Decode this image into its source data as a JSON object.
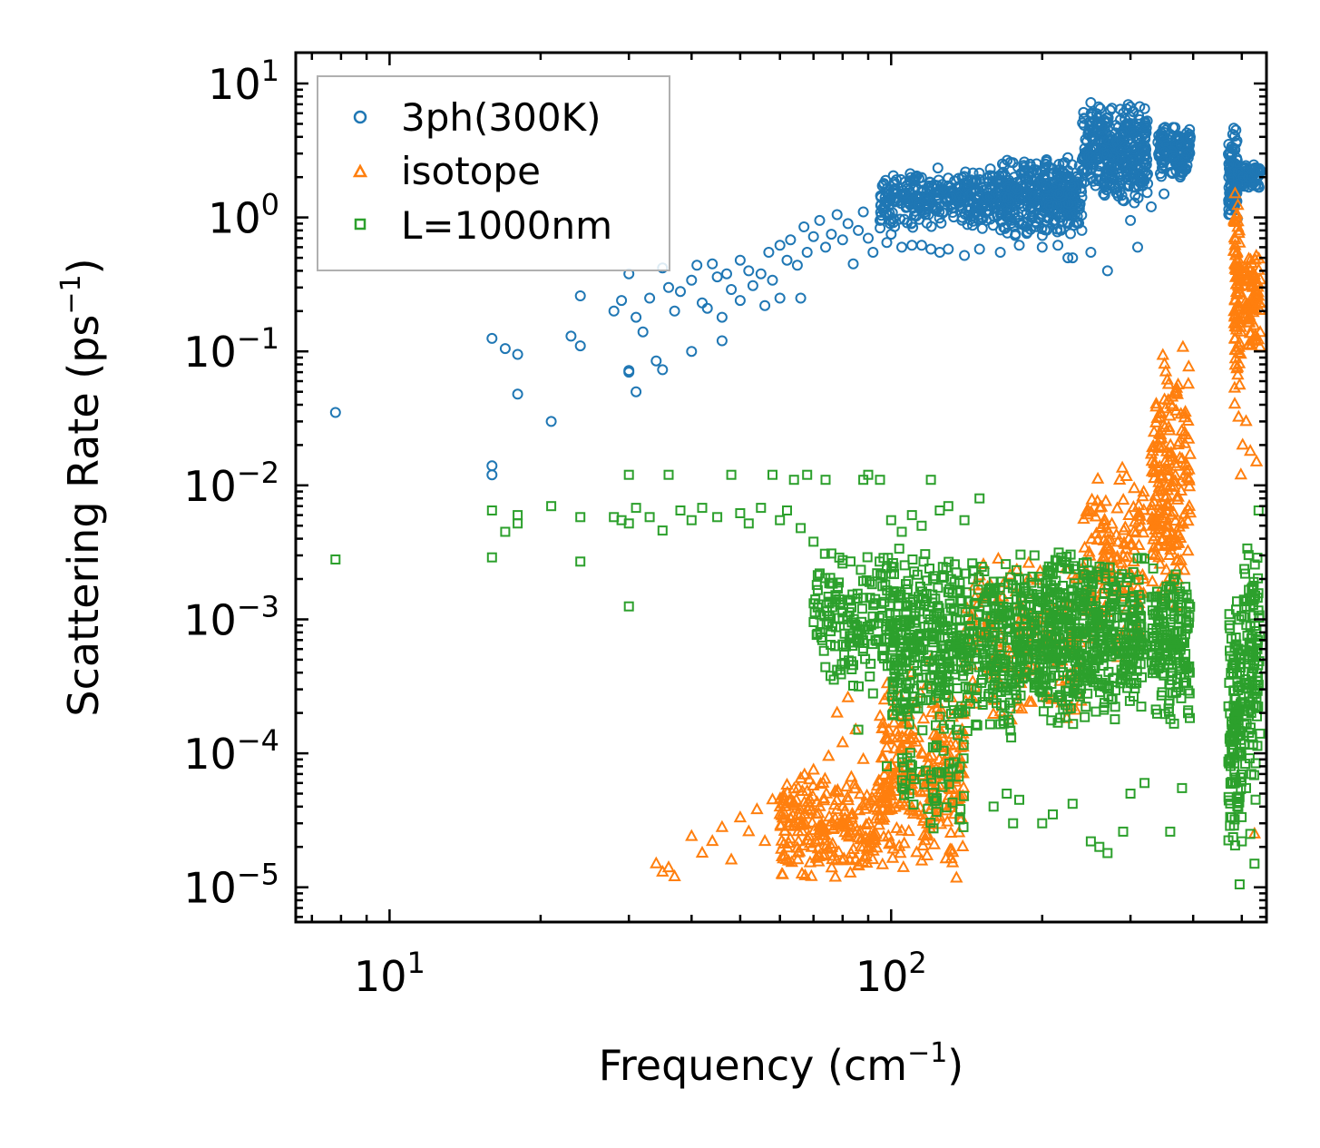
{
  "chart_data": {
    "type": "scatter",
    "xscale": "log",
    "yscale": "log",
    "xlabel": "Frequency (cm",
    "xlabel_sup": "−1",
    "xlabel_end": ")",
    "ylabel": "Scattering Rate (ps",
    "ylabel_sup": "−1",
    "ylabel_end": ")",
    "xlim": [
      6.5,
      560
    ],
    "ylim": [
      5.5e-06,
      17
    ],
    "xticks": [
      {
        "value": 10,
        "base": "10",
        "exp": "1"
      },
      {
        "value": 100,
        "base": "10",
        "exp": "2"
      }
    ],
    "yticks": [
      {
        "value": 10,
        "base": "10",
        "exp": "1"
      },
      {
        "value": 1,
        "base": "10",
        "exp": "0"
      },
      {
        "value": 0.1,
        "base": "10",
        "exp": "−1"
      },
      {
        "value": 0.01,
        "base": "10",
        "exp": "−2"
      },
      {
        "value": 0.001,
        "base": "10",
        "exp": "−3"
      },
      {
        "value": 0.0001,
        "base": "10",
        "exp": "−4"
      },
      {
        "value": 1e-05,
        "base": "10",
        "exp": "−5"
      }
    ],
    "legend_position": "top-left",
    "series": [
      {
        "name": "3ph(300K)",
        "marker": "circle",
        "color": "#1f77b4",
        "points": [
          [
            7.8,
            0.035
          ],
          [
            16,
            0.125
          ],
          [
            16,
            0.014
          ],
          [
            16,
            0.012
          ],
          [
            17,
            0.105
          ],
          [
            18,
            0.048
          ],
          [
            18,
            0.095
          ],
          [
            21,
            0.03
          ],
          [
            23,
            0.13
          ],
          [
            24,
            0.11
          ],
          [
            24,
            0.26
          ],
          [
            28,
            0.2
          ],
          [
            29,
            0.24
          ],
          [
            30,
            0.072
          ],
          [
            30,
            0.38
          ],
          [
            30,
            0.07
          ],
          [
            31,
            0.05
          ],
          [
            31,
            0.18
          ],
          [
            32,
            0.14
          ],
          [
            33,
            0.25
          ],
          [
            34,
            0.085
          ],
          [
            35,
            0.42
          ],
          [
            35,
            0.073
          ],
          [
            36,
            0.3
          ],
          [
            37,
            0.2
          ],
          [
            38,
            0.28
          ],
          [
            40,
            0.34
          ],
          [
            40,
            0.1
          ],
          [
            41,
            0.44
          ],
          [
            42,
            0.23
          ],
          [
            43,
            0.21
          ],
          [
            44,
            0.45
          ],
          [
            45,
            0.36
          ],
          [
            46,
            0.18
          ],
          [
            46,
            0.12
          ],
          [
            47,
            0.38
          ],
          [
            48,
            0.29
          ],
          [
            50,
            0.24
          ],
          [
            50,
            0.48
          ],
          [
            52,
            0.4
          ],
          [
            53,
            0.31
          ],
          [
            55,
            0.38
          ],
          [
            56,
            0.22
          ],
          [
            57,
            0.55
          ],
          [
            58,
            0.34
          ],
          [
            60,
            0.62
          ],
          [
            60,
            0.25
          ],
          [
            62,
            0.48
          ],
          [
            63,
            0.68
          ],
          [
            65,
            0.44
          ],
          [
            66,
            0.25
          ],
          [
            67,
            0.85
          ],
          [
            68,
            0.55
          ],
          [
            70,
            0.72
          ],
          [
            72,
            0.95
          ],
          [
            74,
            0.6
          ],
          [
            76,
            0.75
          ],
          [
            78,
            1.05
          ],
          [
            80,
            0.68
          ],
          [
            82,
            0.9
          ],
          [
            84,
            0.45
          ],
          [
            86,
            0.8
          ],
          [
            88,
            1.1
          ],
          [
            90,
            0.7
          ],
          [
            92,
            0.55
          ],
          [
            95,
            0.95
          ],
          [
            98,
            0.65
          ],
          [
            100,
            0.75
          ],
          [
            105,
            0.6
          ],
          [
            110,
            0.62
          ],
          [
            115,
            0.62
          ],
          [
            120,
            0.58
          ],
          [
            125,
            0.55
          ],
          [
            130,
            0.58
          ],
          [
            140,
            0.52
          ],
          [
            150,
            0.58
          ],
          [
            165,
            0.55
          ],
          [
            180,
            0.62
          ],
          [
            200,
            0.6
          ],
          [
            215,
            0.62
          ],
          [
            225,
            0.5
          ],
          [
            230,
            0.5
          ],
          [
            250,
            0.55
          ],
          [
            270,
            0.4
          ],
          [
            240,
            0.8
          ],
          [
            300,
            0.95
          ],
          [
            310,
            0.6
          ],
          [
            330,
            1.2
          ],
          [
            350,
            1.5
          ]
        ],
        "bands": [
          {
            "x": [
              95,
              165
            ],
            "y": [
              0.8,
              2.4
            ],
            "n": 340
          },
          {
            "x": [
              165,
              240
            ],
            "y": [
              0.7,
              3.0
            ],
            "n": 380
          },
          {
            "x": [
              240,
              325
            ],
            "y": [
              1.2,
              7.5
            ],
            "n": 360
          },
          {
            "x": [
              340,
              395
            ],
            "y": [
              1.9,
              5.0
            ],
            "n": 140
          },
          {
            "x": [
              470,
              490
            ],
            "y": [
              0.9,
              5.0
            ],
            "n": 100
          },
          {
            "x": [
              490,
              545
            ],
            "y": [
              1.6,
              2.6
            ],
            "n": 70
          }
        ]
      },
      {
        "name": "isotope",
        "marker": "triangle",
        "color": "#ff7f0e",
        "points": [
          [
            34,
            1.5e-05
          ],
          [
            35,
            1.3e-05
          ],
          [
            36,
            1.4e-05
          ],
          [
            37,
            1.2e-05
          ],
          [
            40,
            2.4e-05
          ],
          [
            42,
            1.8e-05
          ],
          [
            44,
            2.2e-05
          ],
          [
            46,
            2.8e-05
          ],
          [
            48,
            1.6e-05
          ],
          [
            50,
            3.3e-05
          ],
          [
            52,
            2.6e-05
          ],
          [
            54,
            3.8e-05
          ],
          [
            56,
            2.2e-05
          ],
          [
            58,
            4.5e-05
          ],
          [
            60,
            3.5e-05
          ],
          [
            62,
            5.8e-05
          ],
          [
            64,
            4.2e-05
          ],
          [
            66,
            6.5e-05
          ],
          [
            68,
            5.2e-05
          ],
          [
            70,
            7.5e-05
          ],
          [
            72,
            4e-05
          ],
          [
            75,
            9.5e-05
          ],
          [
            78,
            0.0002
          ],
          [
            80,
            0.00012
          ],
          [
            82,
            0.00026
          ],
          [
            85,
            0.00015
          ],
          [
            88,
            9e-05
          ],
          [
            100,
            0.0003
          ],
          [
            110,
            0.0004
          ],
          [
            120,
            0.0005
          ],
          [
            530,
            2.5e-05
          ],
          [
            498,
            0.012
          ],
          [
            502,
            0.02
          ],
          [
            510,
            0.03
          ],
          [
            520,
            0.018
          ],
          [
            535,
            0.015
          ]
        ],
        "bands": [
          {
            "x": [
              60,
              95
            ],
            "y": [
              1e-05,
              8e-05
            ],
            "n": 220
          },
          {
            "x": [
              95,
              140
            ],
            "y": [
              1e-05,
              0.0004
            ],
            "n": 260
          },
          {
            "x": [
              140,
              240
            ],
            "y": [
              0.00015,
              0.003
            ],
            "n": 160
          },
          {
            "x": [
              240,
              320
            ],
            "y": [
              0.0005,
              0.015
            ],
            "n": 150
          },
          {
            "x": [
              330,
              395
            ],
            "y": [
              0.001,
              0.12
            ],
            "n": 200
          },
          {
            "x": [
              482,
              498
            ],
            "y": [
              0.03,
              2.2
            ],
            "n": 90
          },
          {
            "x": [
              505,
              545
            ],
            "y": [
              0.08,
              0.6
            ],
            "n": 80
          }
        ]
      },
      {
        "name": "L=1000nm",
        "marker": "square",
        "color": "#2ca02c",
        "points": [
          [
            7.8,
            0.0028
          ],
          [
            16,
            0.0065
          ],
          [
            16,
            0.0029
          ],
          [
            17,
            0.0045
          ],
          [
            18,
            0.0052
          ],
          [
            18,
            0.006
          ],
          [
            21,
            0.007
          ],
          [
            24,
            0.0027
          ],
          [
            24,
            0.0058
          ],
          [
            28,
            0.0058
          ],
          [
            29,
            0.0055
          ],
          [
            30,
            0.00125
          ],
          [
            30,
            0.012
          ],
          [
            30,
            0.0052
          ],
          [
            31,
            0.0068
          ],
          [
            33,
            0.0058
          ],
          [
            35,
            0.0046
          ],
          [
            36,
            0.012
          ],
          [
            38,
            0.0065
          ],
          [
            40,
            0.0055
          ],
          [
            42,
            0.0068
          ],
          [
            45,
            0.0058
          ],
          [
            48,
            0.012
          ],
          [
            50,
            0.0062
          ],
          [
            52,
            0.0052
          ],
          [
            55,
            0.0068
          ],
          [
            58,
            0.012
          ],
          [
            60,
            0.0055
          ],
          [
            62,
            0.0065
          ],
          [
            64,
            0.011
          ],
          [
            66,
            0.0048
          ],
          [
            68,
            0.012
          ],
          [
            70,
            0.0038
          ],
          [
            72,
            0.0022
          ],
          [
            74,
            0.011
          ],
          [
            76,
            0.0031
          ],
          [
            78,
            0.00042
          ],
          [
            80,
            0.00065
          ],
          [
            82,
            0.0009
          ],
          [
            84,
            0.00032
          ],
          [
            86,
            0.00015
          ],
          [
            88,
            0.011
          ],
          [
            90,
            0.012
          ],
          [
            92,
            0.00028
          ],
          [
            95,
            0.011
          ],
          [
            98,
            8e-05
          ],
          [
            100,
            0.0055
          ],
          [
            105,
            0.0045
          ],
          [
            110,
            0.006
          ],
          [
            115,
            0.005
          ],
          [
            120,
            0.011
          ],
          [
            125,
            0.0065
          ],
          [
            130,
            0.007
          ],
          [
            140,
            0.0055
          ],
          [
            150,
            0.008
          ],
          [
            160,
            4e-05
          ],
          [
            170,
            5e-05
          ],
          [
            175,
            3e-05
          ],
          [
            180,
            4.5e-05
          ],
          [
            200,
            3e-05
          ],
          [
            210,
            3.5e-05
          ],
          [
            230,
            4.2e-05
          ],
          [
            250,
            2.2e-05
          ],
          [
            260,
            2e-05
          ],
          [
            270,
            1.8e-05
          ],
          [
            290,
            2.6e-05
          ],
          [
            300,
            5e-05
          ],
          [
            320,
            6e-05
          ],
          [
            360,
            2.6e-05
          ],
          [
            380,
            5.5e-05
          ],
          [
            500,
            2.2e-05
          ],
          [
            520,
            2.5e-05
          ],
          [
            530,
            1.5e-05
          ],
          [
            540,
            0.0065
          ],
          [
            495,
            1.05e-05
          ],
          [
            510,
            5.5e-05
          ]
        ],
        "bands": [
          {
            "x": [
              70,
              100
            ],
            "y": [
              0.0003,
              0.0035
            ],
            "n": 160
          },
          {
            "x": [
              100,
              180
            ],
            "y": [
              0.00012,
              0.0035
            ],
            "n": 520
          },
          {
            "x": [
              180,
              320
            ],
            "y": [
              0.00015,
              0.0038
            ],
            "n": 600
          },
          {
            "x": [
              330,
              395
            ],
            "y": [
              0.00015,
              0.003
            ],
            "n": 180
          },
          {
            "x": [
              105,
              140
            ],
            "y": [
              2.5e-05,
              0.0002
            ],
            "n": 60
          },
          {
            "x": [
              470,
              500
            ],
            "y": [
              1.5e-05,
              0.0015
            ],
            "n": 130
          },
          {
            "x": [
              505,
              545
            ],
            "y": [
              4e-05,
              0.0045
            ],
            "n": 110
          }
        ]
      }
    ]
  }
}
